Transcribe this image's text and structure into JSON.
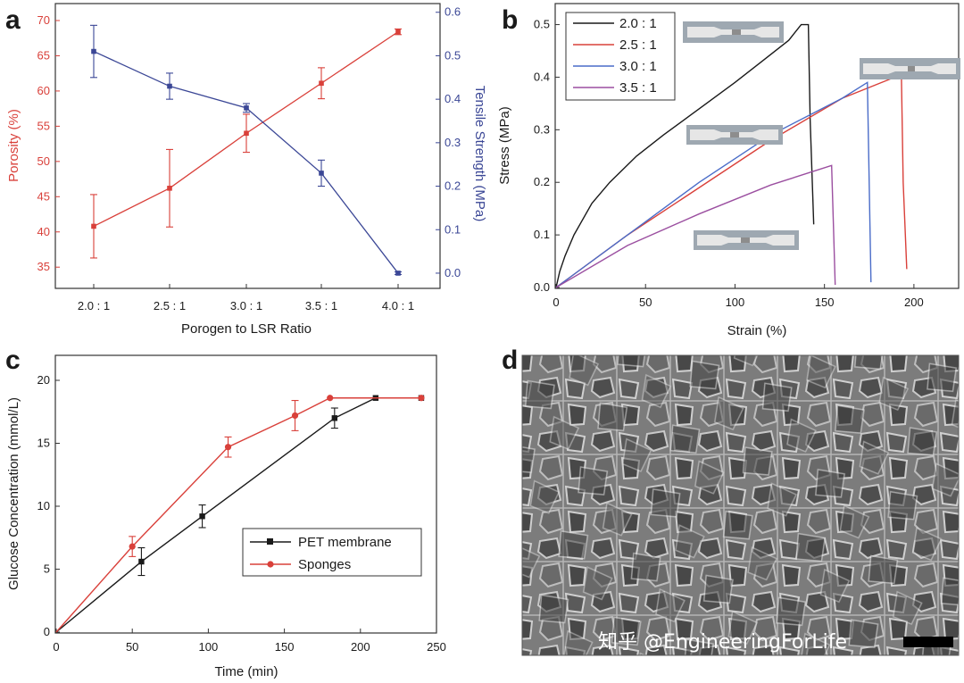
{
  "colors": {
    "red": "#d9403a",
    "blue": "#3b4796",
    "black": "#1a1a1a",
    "purple": "#9b4fa0",
    "ltblue": "#4a6cc8"
  },
  "panels": {
    "a": "a",
    "b": "b",
    "c": "c",
    "d": "d"
  },
  "watermark": "知乎 @EngineeringForLife",
  "chart_data": [
    {
      "panel": "a",
      "type": "line",
      "categories": [
        "2.0 : 1",
        "2.5 : 1",
        "3.0 : 1",
        "3.5 : 1",
        "4.0 : 1"
      ],
      "xlabel": "Porogen to LSR Ratio",
      "ylabel": "Porosity (%)",
      "ylabel_right": "Tensile Strength (MPa)",
      "ylim": [
        33,
        70
      ],
      "ylim_right": [
        -0.035,
        0.62
      ],
      "yticks": [
        35,
        40,
        45,
        50,
        55,
        60,
        65,
        70
      ],
      "yticks_right": [
        0.0,
        0.1,
        0.2,
        0.3,
        0.4,
        0.5,
        0.6
      ],
      "series": [
        {
          "axis": "left",
          "color": "#d9403a",
          "values": [
            40.8,
            46.2,
            54.0,
            61.1,
            68.4
          ],
          "errors": [
            4.5,
            5.5,
            2.7,
            2.2,
            0.4
          ]
        },
        {
          "axis": "right",
          "color": "#3b4796",
          "values": [
            0.51,
            0.43,
            0.38,
            0.23,
            0.0
          ],
          "errors": [
            0.06,
            0.03,
            0.01,
            0.03,
            0.003
          ]
        }
      ]
    },
    {
      "panel": "b",
      "type": "line",
      "xlabel": "Strain (%)",
      "ylabel": "Stress (MPa)",
      "xlim": [
        0,
        225
      ],
      "ylim": [
        0,
        0.54
      ],
      "xticks": [
        0,
        50,
        100,
        150,
        200
      ],
      "yticks": [
        0.0,
        0.1,
        0.2,
        0.3,
        0.4,
        0.5
      ],
      "legend_position": "top-left",
      "series": [
        {
          "name": "2.0 : 1",
          "color": "#1a1a1a",
          "points": [
            [
              0,
              0
            ],
            [
              2,
              0.03
            ],
            [
              5,
              0.06
            ],
            [
              10,
              0.1
            ],
            [
              20,
              0.16
            ],
            [
              30,
              0.2
            ],
            [
              45,
              0.25
            ],
            [
              60,
              0.29
            ],
            [
              80,
              0.34
            ],
            [
              100,
              0.39
            ],
            [
              115,
              0.43
            ],
            [
              130,
              0.47
            ],
            [
              137,
              0.5
            ],
            [
              141,
              0.5
            ],
            [
              142,
              0.32
            ],
            [
              144,
              0.12
            ]
          ]
        },
        {
          "name": "2.5 : 1",
          "color": "#d9403a",
          "points": [
            [
              0,
              0
            ],
            [
              40,
              0.1
            ],
            [
              80,
              0.19
            ],
            [
              120,
              0.28
            ],
            [
              160,
              0.36
            ],
            [
              193,
              0.405
            ],
            [
              194,
              0.2
            ],
            [
              196,
              0.035
            ]
          ]
        },
        {
          "name": "3.0 : 1",
          "color": "#4a6cc8",
          "points": [
            [
              0,
              0
            ],
            [
              40,
              0.1
            ],
            [
              80,
              0.2
            ],
            [
              120,
              0.29
            ],
            [
              160,
              0.36
            ],
            [
              174,
              0.39
            ],
            [
              175,
              0.2
            ],
            [
              176,
              0.01
            ]
          ]
        },
        {
          "name": "3.5 : 1",
          "color": "#9b4fa0",
          "points": [
            [
              0,
              0
            ],
            [
              40,
              0.08
            ],
            [
              80,
              0.14
            ],
            [
              120,
              0.195
            ],
            [
              154,
              0.232
            ],
            [
              155,
              0.12
            ],
            [
              156,
              0.005
            ]
          ]
        }
      ]
    },
    {
      "panel": "c",
      "type": "line",
      "xlabel": "Time (min)",
      "ylabel": "Glucose Concentration (mmol/L)",
      "xlim": [
        0,
        250
      ],
      "ylim": [
        0,
        20
      ],
      "xticks": [
        0,
        50,
        100,
        150,
        200,
        250
      ],
      "yticks": [
        0,
        5,
        10,
        15,
        20
      ],
      "legend_position": "lower-right",
      "series": [
        {
          "name": "PET membrane",
          "color": "#1a1a1a",
          "marker": "square",
          "points": [
            [
              0,
              0
            ],
            [
              56,
              5.6
            ],
            [
              96,
              9.2
            ],
            [
              183,
              17
            ],
            [
              210,
              18.6
            ],
            [
              240,
              18.6
            ]
          ],
          "errors": [
            0,
            1.1,
            0.9,
            0.8,
            0,
            0
          ]
        },
        {
          "name": "Sponges",
          "color": "#d9403a",
          "marker": "circle",
          "points": [
            [
              0,
              0
            ],
            [
              50,
              6.8
            ],
            [
              113,
              14.7
            ],
            [
              157,
              17.2
            ],
            [
              180,
              18.6
            ],
            [
              240,
              18.6
            ]
          ],
          "errors": [
            0,
            0.8,
            0.8,
            1.2,
            0,
            0
          ]
        }
      ]
    }
  ]
}
